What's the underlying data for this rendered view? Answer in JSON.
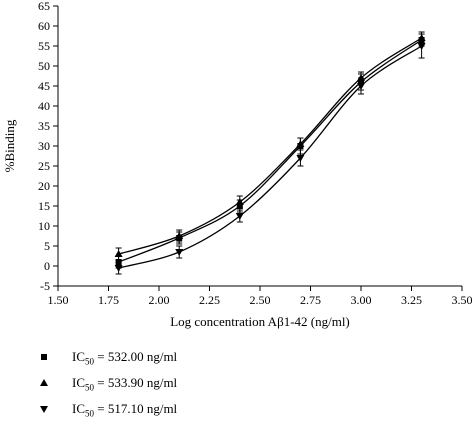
{
  "chart_data": {
    "type": "line",
    "xlabel": "Log concentration Aβ1-42 (ng/ml)",
    "ylabel": "%Binding",
    "xlim": [
      1.5,
      3.5
    ],
    "ylim": [
      -5,
      65
    ],
    "x_ticks": [
      "1.50",
      "1.75",
      "2.00",
      "2.25",
      "2.50",
      "2.75",
      "3.00",
      "3.25",
      "3.50"
    ],
    "y_ticks": [
      "-5",
      "0",
      "5",
      "10",
      "15",
      "20",
      "25",
      "30",
      "35",
      "40",
      "45",
      "50",
      "55",
      "60",
      "65"
    ],
    "x": [
      1.8,
      2.1,
      2.4,
      2.7,
      3.0,
      3.3
    ],
    "series": [
      {
        "name": "IC50 = 532.00 ng/ml",
        "marker": "square",
        "values": [
          1.0,
          7.0,
          15.0,
          30.0,
          46.0,
          56.5
        ],
        "errors": [
          1.5,
          1.5,
          1.5,
          2.0,
          2.0,
          1.5
        ]
      },
      {
        "name": "IC50 = 533.90 ng/ml",
        "marker": "triangle-up",
        "values": [
          3.0,
          7.5,
          16.0,
          30.5,
          47.0,
          57.0
        ],
        "errors": [
          1.5,
          1.5,
          1.5,
          1.5,
          1.5,
          1.5
        ]
      },
      {
        "name": "IC50 = 517.10 ng/ml",
        "marker": "triangle-down",
        "values": [
          -0.5,
          3.5,
          12.5,
          27.0,
          45.0,
          55.0
        ],
        "errors": [
          1.5,
          1.5,
          1.5,
          2.0,
          2.0,
          3.0
        ]
      }
    ],
    "legend_position": "bottom-left",
    "grid": false
  },
  "legend": [
    {
      "prefix": "IC",
      "sub": "50",
      "value": " = 532.00 ng/ml",
      "marker": "square"
    },
    {
      "prefix": "IC",
      "sub": "50",
      "value": " = 533.90 ng/ml",
      "marker": "triangle-up"
    },
    {
      "prefix": "IC",
      "sub": "50",
      "value": " = 517.10 ng/ml",
      "marker": "triangle-down"
    }
  ]
}
